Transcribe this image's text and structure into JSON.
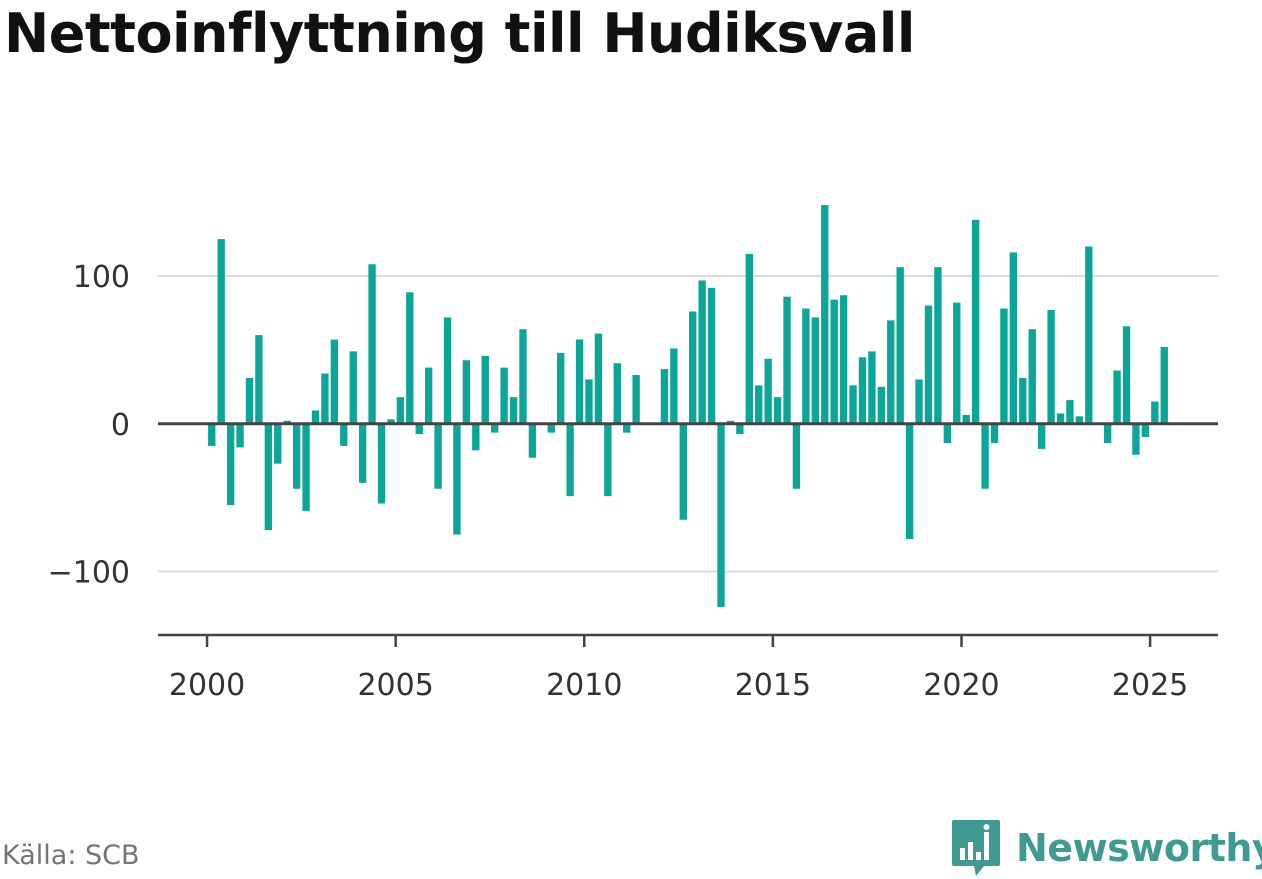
{
  "chart_data": {
    "type": "bar",
    "title": "Nettoinflyttning till Hudiksvall",
    "source": "Källa: SCB",
    "brand": "Newsworthy",
    "ylim": [
      -143,
      165
    ],
    "xlim": [
      1998.7,
      2026.8
    ],
    "yticks": [
      -100,
      0,
      100
    ],
    "xticks": [
      2000,
      2005,
      2010,
      2015,
      2020,
      2025
    ],
    "grid": true,
    "bar_color": "#0ca699",
    "series": [
      {
        "x": [
          2000.125,
          2000.375,
          2000.625,
          2000.875,
          2001.125,
          2001.375,
          2001.625,
          2001.875,
          2002.125,
          2002.375,
          2002.625,
          2002.875,
          2003.125,
          2003.375,
          2003.625,
          2003.875,
          2004.125,
          2004.375,
          2004.625,
          2004.875,
          2005.125,
          2005.375,
          2005.625,
          2005.875,
          2006.125,
          2006.375,
          2006.625,
          2006.875,
          2007.125,
          2007.375,
          2007.625,
          2007.875,
          2008.125,
          2008.375,
          2008.625,
          2008.875,
          2009.125,
          2009.375,
          2009.625,
          2009.875,
          2010.125,
          2010.375,
          2010.625,
          2010.875,
          2011.125,
          2011.375,
          2011.625,
          2011.875,
          2012.125,
          2012.375,
          2012.625,
          2012.875,
          2013.125,
          2013.375,
          2013.625,
          2013.875,
          2014.125,
          2014.375,
          2014.625,
          2014.875,
          2015.125,
          2015.375,
          2015.625,
          2015.875,
          2016.125,
          2016.375,
          2016.625,
          2016.875,
          2017.125,
          2017.375,
          2017.625,
          2017.875,
          2018.125,
          2018.375,
          2018.625,
          2018.875,
          2019.125,
          2019.375,
          2019.625,
          2019.875,
          2020.125,
          2020.375,
          2020.625,
          2020.875,
          2021.125,
          2021.375,
          2021.625,
          2021.875,
          2022.125,
          2022.375,
          2022.625,
          2022.875,
          2023.125,
          2023.375,
          2023.625,
          2023.875,
          2024.125,
          2024.375,
          2024.625,
          2024.875,
          2025.125,
          2025.375
        ],
        "values": [
          -15,
          125,
          -55,
          -16,
          31,
          60,
          -72,
          -27,
          2,
          -44,
          -59,
          9,
          34,
          57,
          -15,
          49,
          -40,
          108,
          -54,
          3,
          18,
          89,
          -7,
          38,
          -44,
          72,
          -75,
          43,
          -18,
          46,
          -6,
          38,
          18,
          64,
          -23,
          0,
          -6,
          48,
          -49,
          57,
          30,
          61,
          -49,
          41,
          -6,
          33,
          0,
          0,
          37,
          51,
          -65,
          76,
          97,
          92,
          -124,
          2,
          -7,
          115,
          26,
          44,
          18,
          86,
          -44,
          78,
          72,
          148,
          84,
          87,
          26,
          45,
          49,
          25,
          70,
          106,
          -78,
          30,
          80,
          106,
          -13,
          82,
          6,
          138,
          -44,
          -13,
          78,
          116,
          31,
          64,
          -17,
          77,
          7,
          16,
          5,
          120,
          0,
          -13,
          36,
          66,
          -21,
          -9,
          15,
          52
        ]
      }
    ]
  }
}
